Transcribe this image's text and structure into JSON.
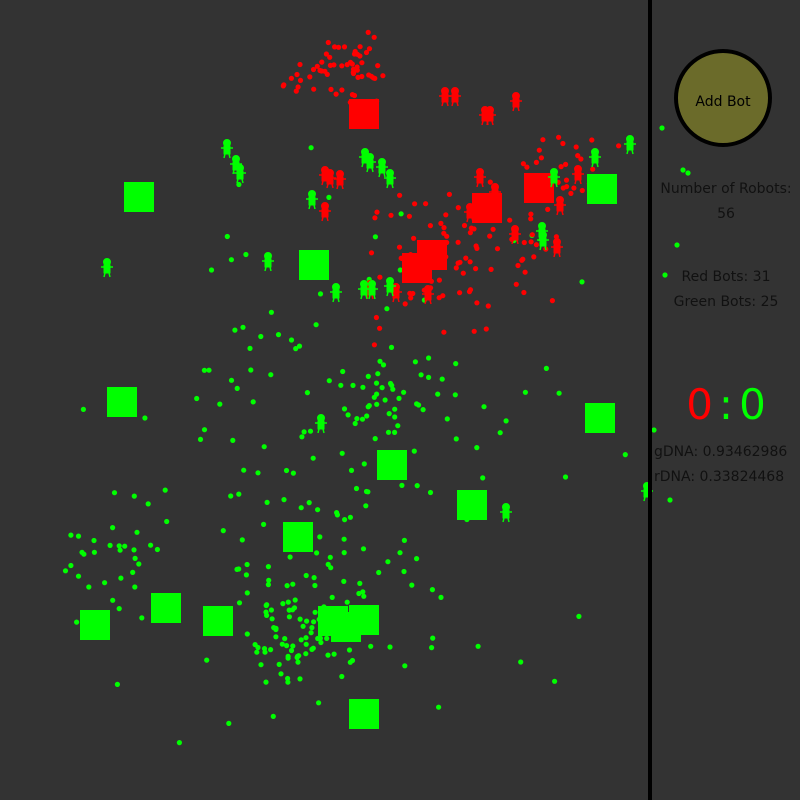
{
  "panel": {
    "add_bot_label": "Add Bot",
    "robots_label": "Number of Robots:",
    "robots_count": "56",
    "red_bots": "Red Bots: 31",
    "green_bots": "Green Bots: 25",
    "score_red": "0",
    "score_sep": ":",
    "score_green": "0",
    "gdna": "gDNA: 0.93462986",
    "rdna": "rDNA: 0.33824468"
  },
  "colors": {
    "background": "#333333",
    "red": "#ff0000",
    "green": "#00ff00",
    "button": "#6b6b2a",
    "divider": "#000000"
  }
}
